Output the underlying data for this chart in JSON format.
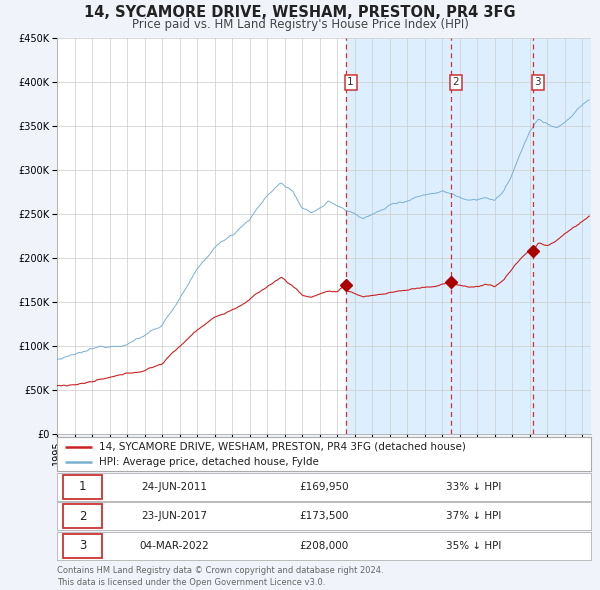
{
  "title": "14, SYCAMORE DRIVE, WESHAM, PRESTON, PR4 3FG",
  "subtitle": "Price paid vs. HM Land Registry's House Price Index (HPI)",
  "legend_red": "14, SYCAMORE DRIVE, WESHAM, PRESTON, PR4 3FG (detached house)",
  "legend_blue": "HPI: Average price, detached house, Fylde",
  "footer": "Contains HM Land Registry data © Crown copyright and database right 2024.\nThis data is licensed under the Open Government Licence v3.0.",
  "transactions": [
    {
      "num": 1,
      "date": "24-JUN-2011",
      "price": 169950,
      "hpi_pct": "33% ↓ HPI",
      "year": 2011.48
    },
    {
      "num": 2,
      "date": "23-JUN-2017",
      "price": 173500,
      "hpi_pct": "37% ↓ HPI",
      "year": 2017.48
    },
    {
      "num": 3,
      "date": "04-MAR-2022",
      "price": 208000,
      "hpi_pct": "35% ↓ HPI",
      "year": 2022.17
    }
  ],
  "ylim": [
    0,
    450000
  ],
  "xlim_start": 1995.0,
  "xlim_end": 2025.5,
  "hpi_color": "#7ab0d4",
  "price_color": "#cc2222",
  "background_color": "#f0f4fa",
  "plot_bg": "#ffffff",
  "grid_color": "#cccccc",
  "shade_color": "#ddeeff",
  "vline_color": "#cc3333",
  "marker_color": "#aa0000",
  "title_fontsize": 10.5,
  "subtitle_fontsize": 8.5,
  "tick_fontsize": 7,
  "legend_fontsize": 7.5,
  "table_fontsize": 7.5,
  "footer_fontsize": 6
}
